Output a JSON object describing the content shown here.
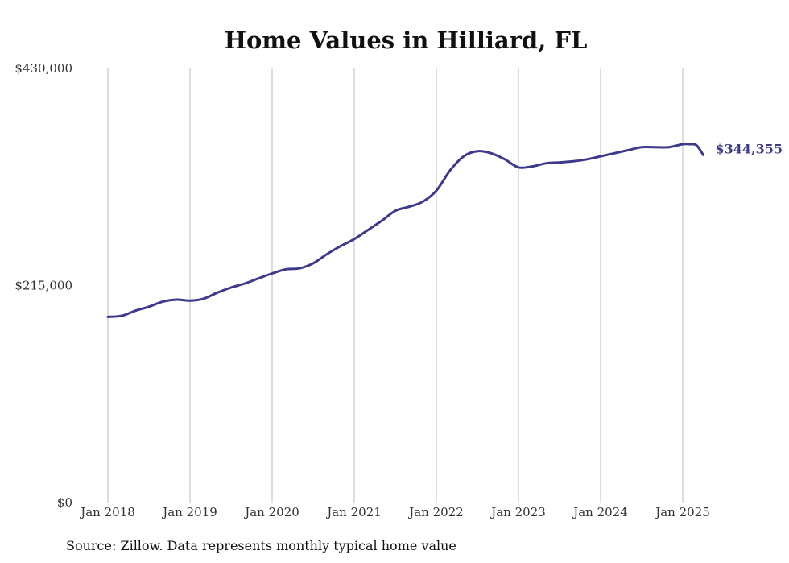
{
  "source_note": "Source: Zillow. Data represents monthly typical home value",
  "colors": {
    "line": "#3d3a8c",
    "grid": "#bdbdbd",
    "text": "#333333"
  },
  "chart_data": {
    "type": "line",
    "title": "Home Values in Hilliard, FL",
    "xlabel": "",
    "ylabel": "",
    "ylim": [
      0,
      430000
    ],
    "y_ticks": [
      {
        "value": 430000,
        "label": "$430,000"
      },
      {
        "value": 215000,
        "label": "$215,000"
      },
      {
        "value": 0,
        "label": "$0"
      }
    ],
    "x_ticks": [
      {
        "value": "2018-01",
        "label": "Jan 2018"
      },
      {
        "value": "2019-01",
        "label": "Jan 2019"
      },
      {
        "value": "2020-01",
        "label": "Jan 2020"
      },
      {
        "value": "2021-01",
        "label": "Jan 2021"
      },
      {
        "value": "2022-01",
        "label": "Jan 2022"
      },
      {
        "value": "2023-01",
        "label": "Jan 2023"
      },
      {
        "value": "2024-01",
        "label": "Jan 2024"
      },
      {
        "value": "2025-01",
        "label": "Jan 2025"
      }
    ],
    "grid": "vertical",
    "legend": "none",
    "end_label": "$344,355",
    "series": [
      {
        "x": [
          "2018-01",
          "2018-03",
          "2018-05",
          "2018-07",
          "2018-09",
          "2018-11",
          "2019-01",
          "2019-03",
          "2019-05",
          "2019-07",
          "2019-09",
          "2019-11",
          "2020-01",
          "2020-03",
          "2020-05",
          "2020-07",
          "2020-09",
          "2020-11",
          "2021-01",
          "2021-03",
          "2021-05",
          "2021-07",
          "2021-09",
          "2021-11",
          "2022-01",
          "2022-03",
          "2022-05",
          "2022-07",
          "2022-09",
          "2022-11",
          "2023-01",
          "2023-03",
          "2023-05",
          "2023-07",
          "2023-09",
          "2023-11",
          "2024-01",
          "2024-03",
          "2024-05",
          "2024-07",
          "2024-09",
          "2024-11",
          "2025-01",
          "2025-02",
          "2025-03",
          "2025-04"
        ],
        "y": [
          184000,
          185000,
          190000,
          194000,
          199000,
          201000,
          200000,
          202000,
          208000,
          213000,
          217000,
          222000,
          227000,
          231000,
          232000,
          237000,
          246000,
          254000,
          261000,
          270000,
          279000,
          289000,
          293000,
          298000,
          309000,
          329000,
          343000,
          348000,
          346000,
          340000,
          332000,
          333000,
          336000,
          337000,
          338000,
          340000,
          343000,
          346000,
          349000,
          352000,
          352000,
          352000,
          355000,
          355000,
          354000,
          344355
        ]
      }
    ]
  }
}
